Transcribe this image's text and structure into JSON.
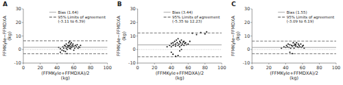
{
  "chart_data": [
    {
      "type": "scatter",
      "title": "A",
      "x_label": "(FFMKyle+FFMDXA)/2\n(kg)",
      "y_label": "FFMKyle−FFMDXA\n(kg)",
      "xlim": [
        0,
        100
      ],
      "ylim": [
        -10,
        30
      ],
      "xticks": [
        0,
        20,
        40,
        60,
        80,
        100
      ],
      "yticks": [
        -10,
        0,
        10,
        20,
        30
      ],
      "grid": false,
      "legend": "upper right",
      "series": [
        {
          "type": "scatter",
          "marker": "circle",
          "color": "#111111",
          "x": [
            42,
            44,
            46,
            47,
            48,
            49,
            50,
            50,
            51,
            51,
            52,
            52,
            53,
            53,
            54,
            54,
            55,
            55,
            55,
            56,
            56,
            57,
            57,
            58,
            58,
            59,
            60,
            61,
            62,
            63,
            64,
            65,
            66,
            67,
            68,
            44,
            48,
            52,
            56,
            60
          ],
          "values": [
            1.5,
            0.5,
            -0.5,
            2.0,
            1.0,
            3.0,
            -1.5,
            2.5,
            4.0,
            1.0,
            2.0,
            0.0,
            3.0,
            1.5,
            5.0,
            2.5,
            6.0,
            3.0,
            1.0,
            4.0,
            2.0,
            5.0,
            1.5,
            3.0,
            2.0,
            4.0,
            2.5,
            1.0,
            3.0,
            2.0,
            3.5,
            1.0,
            2.0,
            1.5,
            3.0,
            -2.0,
            -1.0,
            -3.0,
            0.5,
            -0.5
          ]
        },
        {
          "type": "hline",
          "line_style": "dotted",
          "color": "#aaaaaa",
          "values": [
            0
          ]
        },
        {
          "type": "hline",
          "line_style": "solid",
          "color": "#999999",
          "name": "Bias (1.64)",
          "values": [
            1.64
          ]
        },
        {
          "type": "hline",
          "line_style": "dashed",
          "color": "#333333",
          "name": "95% Limits of agreement\n(-3.11 to 6.39)",
          "values": [
            6.39,
            -3.11
          ]
        }
      ]
    },
    {
      "type": "scatter",
      "title": "B",
      "x_label": "(FFMKyle+FFMDXA)/2\n(kg)",
      "y_label": "FFMKyle−FFMDXA\n(kg)",
      "xlim": [
        0,
        100
      ],
      "ylim": [
        -10,
        30
      ],
      "xticks": [
        0,
        20,
        40,
        60,
        80,
        100
      ],
      "yticks": [
        -10,
        0,
        10,
        20,
        30
      ],
      "grid": false,
      "legend": "upper right",
      "series": [
        {
          "type": "scatter",
          "marker": "circle",
          "color": "#111111",
          "x": [
            35,
            38,
            40,
            40,
            42,
            42,
            43,
            44,
            45,
            45,
            46,
            47,
            48,
            48,
            49,
            50,
            50,
            51,
            52,
            52,
            53,
            54,
            55,
            55,
            56,
            57,
            58,
            60,
            62,
            65,
            70,
            75,
            80,
            82,
            40,
            42,
            45,
            48,
            50,
            52
          ],
          "values": [
            2.0,
            3.0,
            4.5,
            2.0,
            5.0,
            3.0,
            3.5,
            6.0,
            4.0,
            2.5,
            7.0,
            5.0,
            3.0,
            8.0,
            4.0,
            6.0,
            2.0,
            5.0,
            3.0,
            7.0,
            4.0,
            5.5,
            3.0,
            6.0,
            4.5,
            5.0,
            3.5,
            4.0,
            6.0,
            12.0,
            11.0,
            12.5,
            11.5,
            13.0,
            -2.0,
            -3.5,
            -5.0,
            -4.5,
            -1.0,
            0.0
          ]
        },
        {
          "type": "hline",
          "line_style": "dotted",
          "color": "#aaaaaa",
          "values": [
            0
          ]
        },
        {
          "type": "hline",
          "line_style": "solid",
          "color": "#999999",
          "name": "Bias (3.44)",
          "values": [
            3.44
          ]
        },
        {
          "type": "hline",
          "line_style": "dashed",
          "color": "#333333",
          "name": "95% Limits of agreement\n(-5.35 to 12.23)",
          "values": [
            12.23,
            -5.35
          ]
        }
      ]
    },
    {
      "type": "scatter",
      "title": "C",
      "x_label": "(FFMKyle+FFMDXA)/2\n(kg)",
      "y_label": "FFMKyle−FFMDXA\n(kg)",
      "xlim": [
        0,
        100
      ],
      "ylim": [
        -10,
        30
      ],
      "xticks": [
        0,
        20,
        40,
        60,
        80,
        100
      ],
      "yticks": [
        -10,
        0,
        10,
        20,
        30
      ],
      "grid": false,
      "legend": "upper right",
      "series": [
        {
          "type": "scatter",
          "marker": "circle",
          "color": "#111111",
          "x": [
            35,
            38,
            40,
            41,
            42,
            43,
            44,
            45,
            46,
            47,
            48,
            49,
            50,
            50,
            51,
            52,
            52,
            53,
            54,
            55,
            55,
            56,
            57,
            58,
            59,
            60,
            61,
            62,
            45,
            48
          ],
          "values": [
            1.0,
            2.0,
            1.5,
            3.0,
            2.0,
            4.0,
            1.5,
            3.5,
            1.0,
            3.0,
            2.5,
            5.0,
            3.0,
            1.0,
            4.0,
            2.5,
            3.5,
            5.0,
            2.0,
            4.0,
            1.5,
            3.0,
            2.0,
            4.0,
            1.5,
            2.5,
            3.0,
            1.0,
            -2.0,
            -3.0
          ]
        },
        {
          "type": "hline",
          "line_style": "dotted",
          "color": "#aaaaaa",
          "values": [
            0
          ]
        },
        {
          "type": "hline",
          "line_style": "solid",
          "color": "#999999",
          "name": "Bias (1.55)",
          "values": [
            1.55
          ]
        },
        {
          "type": "hline",
          "line_style": "dashed",
          "color": "#333333",
          "name": "95% Limits of agreement\n(-3.09 to 6.19)",
          "values": [
            6.19,
            -3.09
          ]
        }
      ]
    }
  ]
}
